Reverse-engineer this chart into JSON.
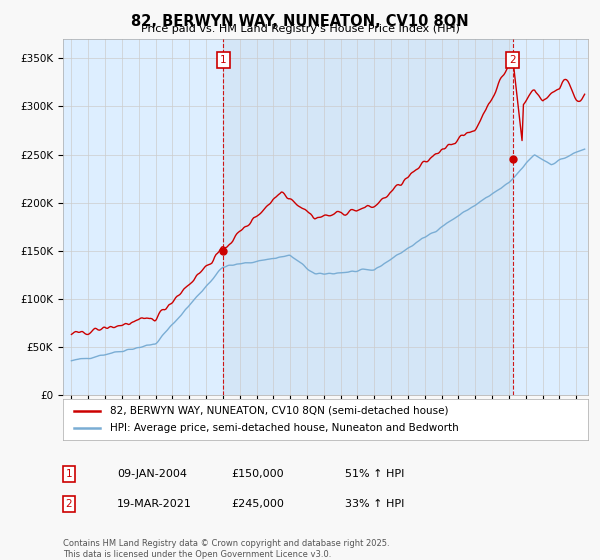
{
  "title": "82, BERWYN WAY, NUNEATON, CV10 8QN",
  "subtitle": "Price paid vs. HM Land Registry's House Price Index (HPI)",
  "legend_line1": "82, BERWYN WAY, NUNEATON, CV10 8QN (semi-detached house)",
  "legend_line2": "HPI: Average price, semi-detached house, Nuneaton and Bedworth",
  "sale1_date": "09-JAN-2004",
  "sale1_price": "£150,000",
  "sale1_hpi": "51% ↑ HPI",
  "sale2_date": "19-MAR-2021",
  "sale2_price": "£245,000",
  "sale2_hpi": "33% ↑ HPI",
  "footer": "Contains HM Land Registry data © Crown copyright and database right 2025.\nThis data is licensed under the Open Government Licence v3.0.",
  "sale1_x": 2004.03,
  "sale2_x": 2021.22,
  "sale1_y": 150000,
  "sale2_y": 245000,
  "red_color": "#cc0000",
  "blue_color": "#7aadd4",
  "vline_color": "#cc0000",
  "background_color": "#f0f4f8",
  "plot_bg_color": "#ddeeff",
  "ylim": [
    0,
    370000
  ],
  "xlim_start": 1994.5,
  "xlim_end": 2025.7
}
